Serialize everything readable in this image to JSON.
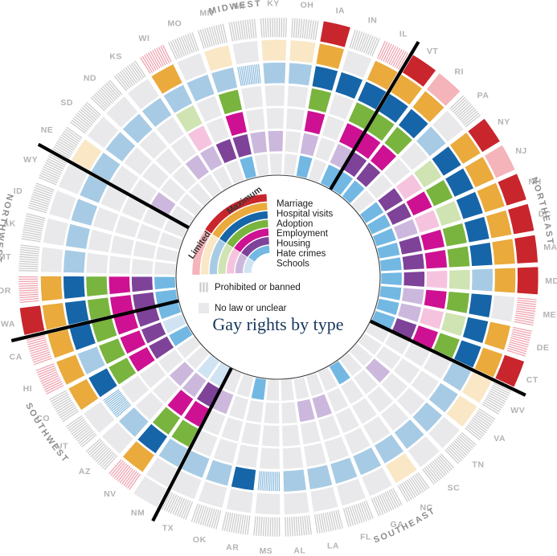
{
  "title": "Gay rights by type",
  "legend": {
    "maximum_label": "Maximum",
    "limited_label": "Limited",
    "banned_label": "Prohibited or banned",
    "none_label": "No law or unclear"
  },
  "colors": {
    "none_cell": "#e9e9eb",
    "banned_cell_bg": "#fcfcfc",
    "banned_stripe": "#c9c9c9",
    "banned_limited_stripe": "#f19daa",
    "banned_adoption_stripe": "#85b8dc",
    "state_label": "#b3b3b3",
    "region_label": "#8d8d8d",
    "divider_line": "#000000",
    "inner_circle_stroke": "#3f3f3f",
    "title_color": "#16365a"
  },
  "chart_data": {
    "type": "radial_heatmap",
    "rings_outer_to_inner": [
      {
        "key": "marriage",
        "label": "Marriage",
        "max": "#c9252c",
        "limited": "#f5b3ba"
      },
      {
        "key": "hospital_visits",
        "label": "Hospital visits",
        "max": "#eaaa3c",
        "limited": "#fae7c6"
      },
      {
        "key": "adoption",
        "label": "Adoption",
        "max": "#1665a8",
        "limited": "#a7cbe5"
      },
      {
        "key": "employment",
        "label": "Employment",
        "max": "#79b43e",
        "limited": "#cfe4b2"
      },
      {
        "key": "housing",
        "label": "Housing",
        "max": "#ce1192",
        "limited": "#f6c3de"
      },
      {
        "key": "hate_crimes",
        "label": "Hate crimes",
        "max": "#7e4299",
        "limited": "#ccb8dd"
      },
      {
        "key": "schools",
        "label": "Schools",
        "max": "#72b8e3",
        "limited": "#cfe3f2"
      }
    ],
    "value_legend": {
      "M": "maximum law",
      "L": "limited law",
      "B": "prohibited or banned",
      "BL": "prohibited or banned (with limited recognition)",
      "N": "no law or unclear"
    },
    "divider_angles_deg": [
      31.8,
      116.5,
      208.2,
      257.6,
      300.0
    ],
    "region_labels": [
      {
        "name": "MIDWEST",
        "angle": 351,
        "flip": false
      },
      {
        "name": "NORTHEAST",
        "angle": 76,
        "flip": false
      },
      {
        "name": "SOUTHEAST",
        "angle": 153,
        "flip": true
      },
      {
        "name": "SOUTHWEST",
        "angle": 236,
        "flip": true
      },
      {
        "name": "NORTHWEST",
        "angle": 280,
        "flip": true
      }
    ],
    "states_clockwise_from_top": [
      {
        "code": "KY",
        "region": "Midwest",
        "values": [
          "B",
          "L",
          "L",
          "N",
          "N",
          "L",
          "N"
        ]
      },
      {
        "code": "OH",
        "region": "Midwest",
        "values": [
          "B",
          "L",
          "L",
          "N",
          "N",
          "N",
          "N"
        ]
      },
      {
        "code": "IA",
        "region": "Midwest",
        "values": [
          "M",
          "M",
          "M",
          "M",
          "M",
          "L",
          "M"
        ]
      },
      {
        "code": "IN",
        "region": "Midwest",
        "values": [
          "B",
          "N",
          "M",
          "N",
          "N",
          "N",
          "N"
        ]
      },
      {
        "code": "IL",
        "region": "Midwest",
        "values": [
          "BL",
          "M",
          "M",
          "M",
          "M",
          "L",
          "M"
        ]
      },
      {
        "code": "VT",
        "region": "Northeast",
        "values": [
          "M",
          "M",
          "M",
          "M",
          "M",
          "M",
          "M"
        ]
      },
      {
        "code": "RI",
        "region": "Northeast",
        "values": [
          "L",
          "M",
          "M",
          "M",
          "M",
          "M",
          "M"
        ]
      },
      {
        "code": "PA",
        "region": "Northeast",
        "values": [
          "B",
          "N",
          "L",
          "N",
          "N",
          "N",
          "N"
        ]
      },
      {
        "code": "NY",
        "region": "Northeast",
        "values": [
          "M",
          "M",
          "M",
          "L",
          "L",
          "M",
          "M"
        ]
      },
      {
        "code": "NJ",
        "region": "Northeast",
        "values": [
          "L",
          "M",
          "M",
          "M",
          "M",
          "M",
          "M"
        ]
      },
      {
        "code": "NH",
        "region": "Northeast",
        "values": [
          "M",
          "M",
          "M",
          "L",
          "L",
          "L",
          "M"
        ]
      },
      {
        "code": "DC",
        "region": "Northeast",
        "values": [
          "M",
          "M",
          "M",
          "M",
          "M",
          "M",
          "M"
        ]
      },
      {
        "code": "MA",
        "region": "Northeast",
        "values": [
          "M",
          "M",
          "M",
          "M",
          "M",
          "M",
          "M"
        ]
      },
      {
        "code": "MD",
        "region": "Northeast",
        "values": [
          "M",
          "M",
          "L",
          "L",
          "L",
          "M",
          "M"
        ]
      },
      {
        "code": "ME",
        "region": "Northeast",
        "values": [
          "BL",
          "N",
          "M",
          "M",
          "M",
          "L",
          "M"
        ]
      },
      {
        "code": "DE",
        "region": "Northeast",
        "values": [
          "BL",
          "M",
          "M",
          "L",
          "L",
          "L",
          "M"
        ]
      },
      {
        "code": "CT",
        "region": "Northeast",
        "values": [
          "M",
          "M",
          "M",
          "M",
          "M",
          "M",
          "M"
        ]
      },
      {
        "code": "WV",
        "region": "Southeast",
        "values": [
          "B",
          "L",
          "L",
          "N",
          "N",
          "N",
          "N"
        ]
      },
      {
        "code": "VA",
        "region": "Southeast",
        "values": [
          "B",
          "L",
          "L",
          "N",
          "N",
          "N",
          "N"
        ]
      },
      {
        "code": "TN",
        "region": "Southeast",
        "values": [
          "B",
          "N",
          "L",
          "N",
          "N",
          "L",
          "N"
        ]
      },
      {
        "code": "SC",
        "region": "Southeast",
        "values": [
          "B",
          "N",
          "L",
          "N",
          "N",
          "N",
          "N"
        ]
      },
      {
        "code": "NC",
        "region": "Southeast",
        "values": [
          "B",
          "L",
          "L",
          "N",
          "N",
          "N",
          "M"
        ]
      },
      {
        "code": "GA",
        "region": "Southeast",
        "values": [
          "B",
          "N",
          "L",
          "N",
          "N",
          "N",
          "N"
        ]
      },
      {
        "code": "FL",
        "region": "Southeast",
        "values": [
          "B",
          "N",
          "L",
          "N",
          "N",
          "L",
          "N"
        ]
      },
      {
        "code": "LA",
        "region": "Southeast",
        "values": [
          "B",
          "N",
          "L",
          "N",
          "N",
          "L",
          "N"
        ]
      },
      {
        "code": "AL",
        "region": "Southeast",
        "values": [
          "B",
          "N",
          "L",
          "N",
          "N",
          "N",
          "N"
        ]
      },
      {
        "code": "MS",
        "region": "Southeast",
        "values": [
          "B",
          "N",
          "B",
          "N",
          "N",
          "N",
          "N"
        ]
      },
      {
        "code": "AR",
        "region": "Southeast",
        "values": [
          "B",
          "N",
          "M",
          "N",
          "N",
          "N",
          "M"
        ]
      },
      {
        "code": "OK",
        "region": "Southeast",
        "values": [
          "B",
          "N",
          "L",
          "N",
          "N",
          "N",
          "N"
        ]
      },
      {
        "code": "TX",
        "region": "Southeast",
        "values": [
          "B",
          "N",
          "L",
          "N",
          "N",
          "L",
          "N"
        ]
      },
      {
        "code": "NM",
        "region": "Southwest",
        "values": [
          "N",
          "N",
          "L",
          "M",
          "M",
          "M",
          "L"
        ]
      },
      {
        "code": "NV",
        "region": "Southwest",
        "values": [
          "BL",
          "M",
          "M",
          "M",
          "M",
          "L",
          "L"
        ]
      },
      {
        "code": "AZ",
        "region": "Southwest",
        "values": [
          "B",
          "N",
          "L",
          "N",
          "N",
          "L",
          "N"
        ]
      },
      {
        "code": "UT",
        "region": "Southwest",
        "values": [
          "B",
          "N",
          "B",
          "N",
          "N",
          "N",
          "N"
        ]
      },
      {
        "code": "CO",
        "region": "Southwest",
        "values": [
          "B",
          "M",
          "M",
          "M",
          "M",
          "M",
          "M"
        ]
      },
      {
        "code": "HI",
        "region": "Southwest",
        "values": [
          "BL",
          "M",
          "L",
          "M",
          "M",
          "M",
          "L"
        ]
      },
      {
        "code": "CA",
        "region": "Southwest",
        "values": [
          "BL",
          "M",
          "M",
          "M",
          "M",
          "M",
          "M"
        ]
      },
      {
        "code": "WA",
        "region": "Northwest",
        "values": [
          "M",
          "M",
          "M",
          "M",
          "M",
          "M",
          "M"
        ]
      },
      {
        "code": "OR",
        "region": "Northwest",
        "values": [
          "BL",
          "M",
          "M",
          "M",
          "M",
          "M",
          "M"
        ]
      },
      {
        "code": "MT",
        "region": "Northwest",
        "values": [
          "B",
          "N",
          "L",
          "N",
          "N",
          "N",
          "N"
        ]
      },
      {
        "code": "AK",
        "region": "Northwest",
        "values": [
          "B",
          "N",
          "L",
          "N",
          "N",
          "N",
          "N"
        ]
      },
      {
        "code": "ID",
        "region": "Northwest",
        "values": [
          "B",
          "N",
          "L",
          "N",
          "N",
          "N",
          "N"
        ]
      },
      {
        "code": "WY",
        "region": "Northwest",
        "values": [
          "B",
          "N",
          "L",
          "N",
          "N",
          "N",
          "N"
        ]
      },
      {
        "code": "NE",
        "region": "Midwest",
        "values": [
          "B",
          "L",
          "L",
          "N",
          "N",
          "L",
          "N"
        ]
      },
      {
        "code": "SD",
        "region": "Midwest",
        "values": [
          "B",
          "N",
          "L",
          "N",
          "N",
          "N",
          "N"
        ]
      },
      {
        "code": "ND",
        "region": "Midwest",
        "values": [
          "B",
          "N",
          "L",
          "N",
          "N",
          "N",
          "N"
        ]
      },
      {
        "code": "KS",
        "region": "Midwest",
        "values": [
          "B",
          "N",
          "L",
          "N",
          "N",
          "L",
          "N"
        ]
      },
      {
        "code": "WI",
        "region": "Midwest",
        "values": [
          "BL",
          "M",
          "L",
          "L",
          "L",
          "L",
          "N"
        ]
      },
      {
        "code": "MO",
        "region": "Midwest",
        "values": [
          "B",
          "N",
          "L",
          "N",
          "N",
          "M",
          "N"
        ]
      },
      {
        "code": "MN",
        "region": "Midwest",
        "values": [
          "B",
          "L",
          "L",
          "M",
          "M",
          "M",
          "M"
        ]
      },
      {
        "code": "MI",
        "region": "Midwest",
        "values": [
          "B",
          "N",
          "B",
          "N",
          "N",
          "L",
          "N"
        ]
      }
    ]
  }
}
